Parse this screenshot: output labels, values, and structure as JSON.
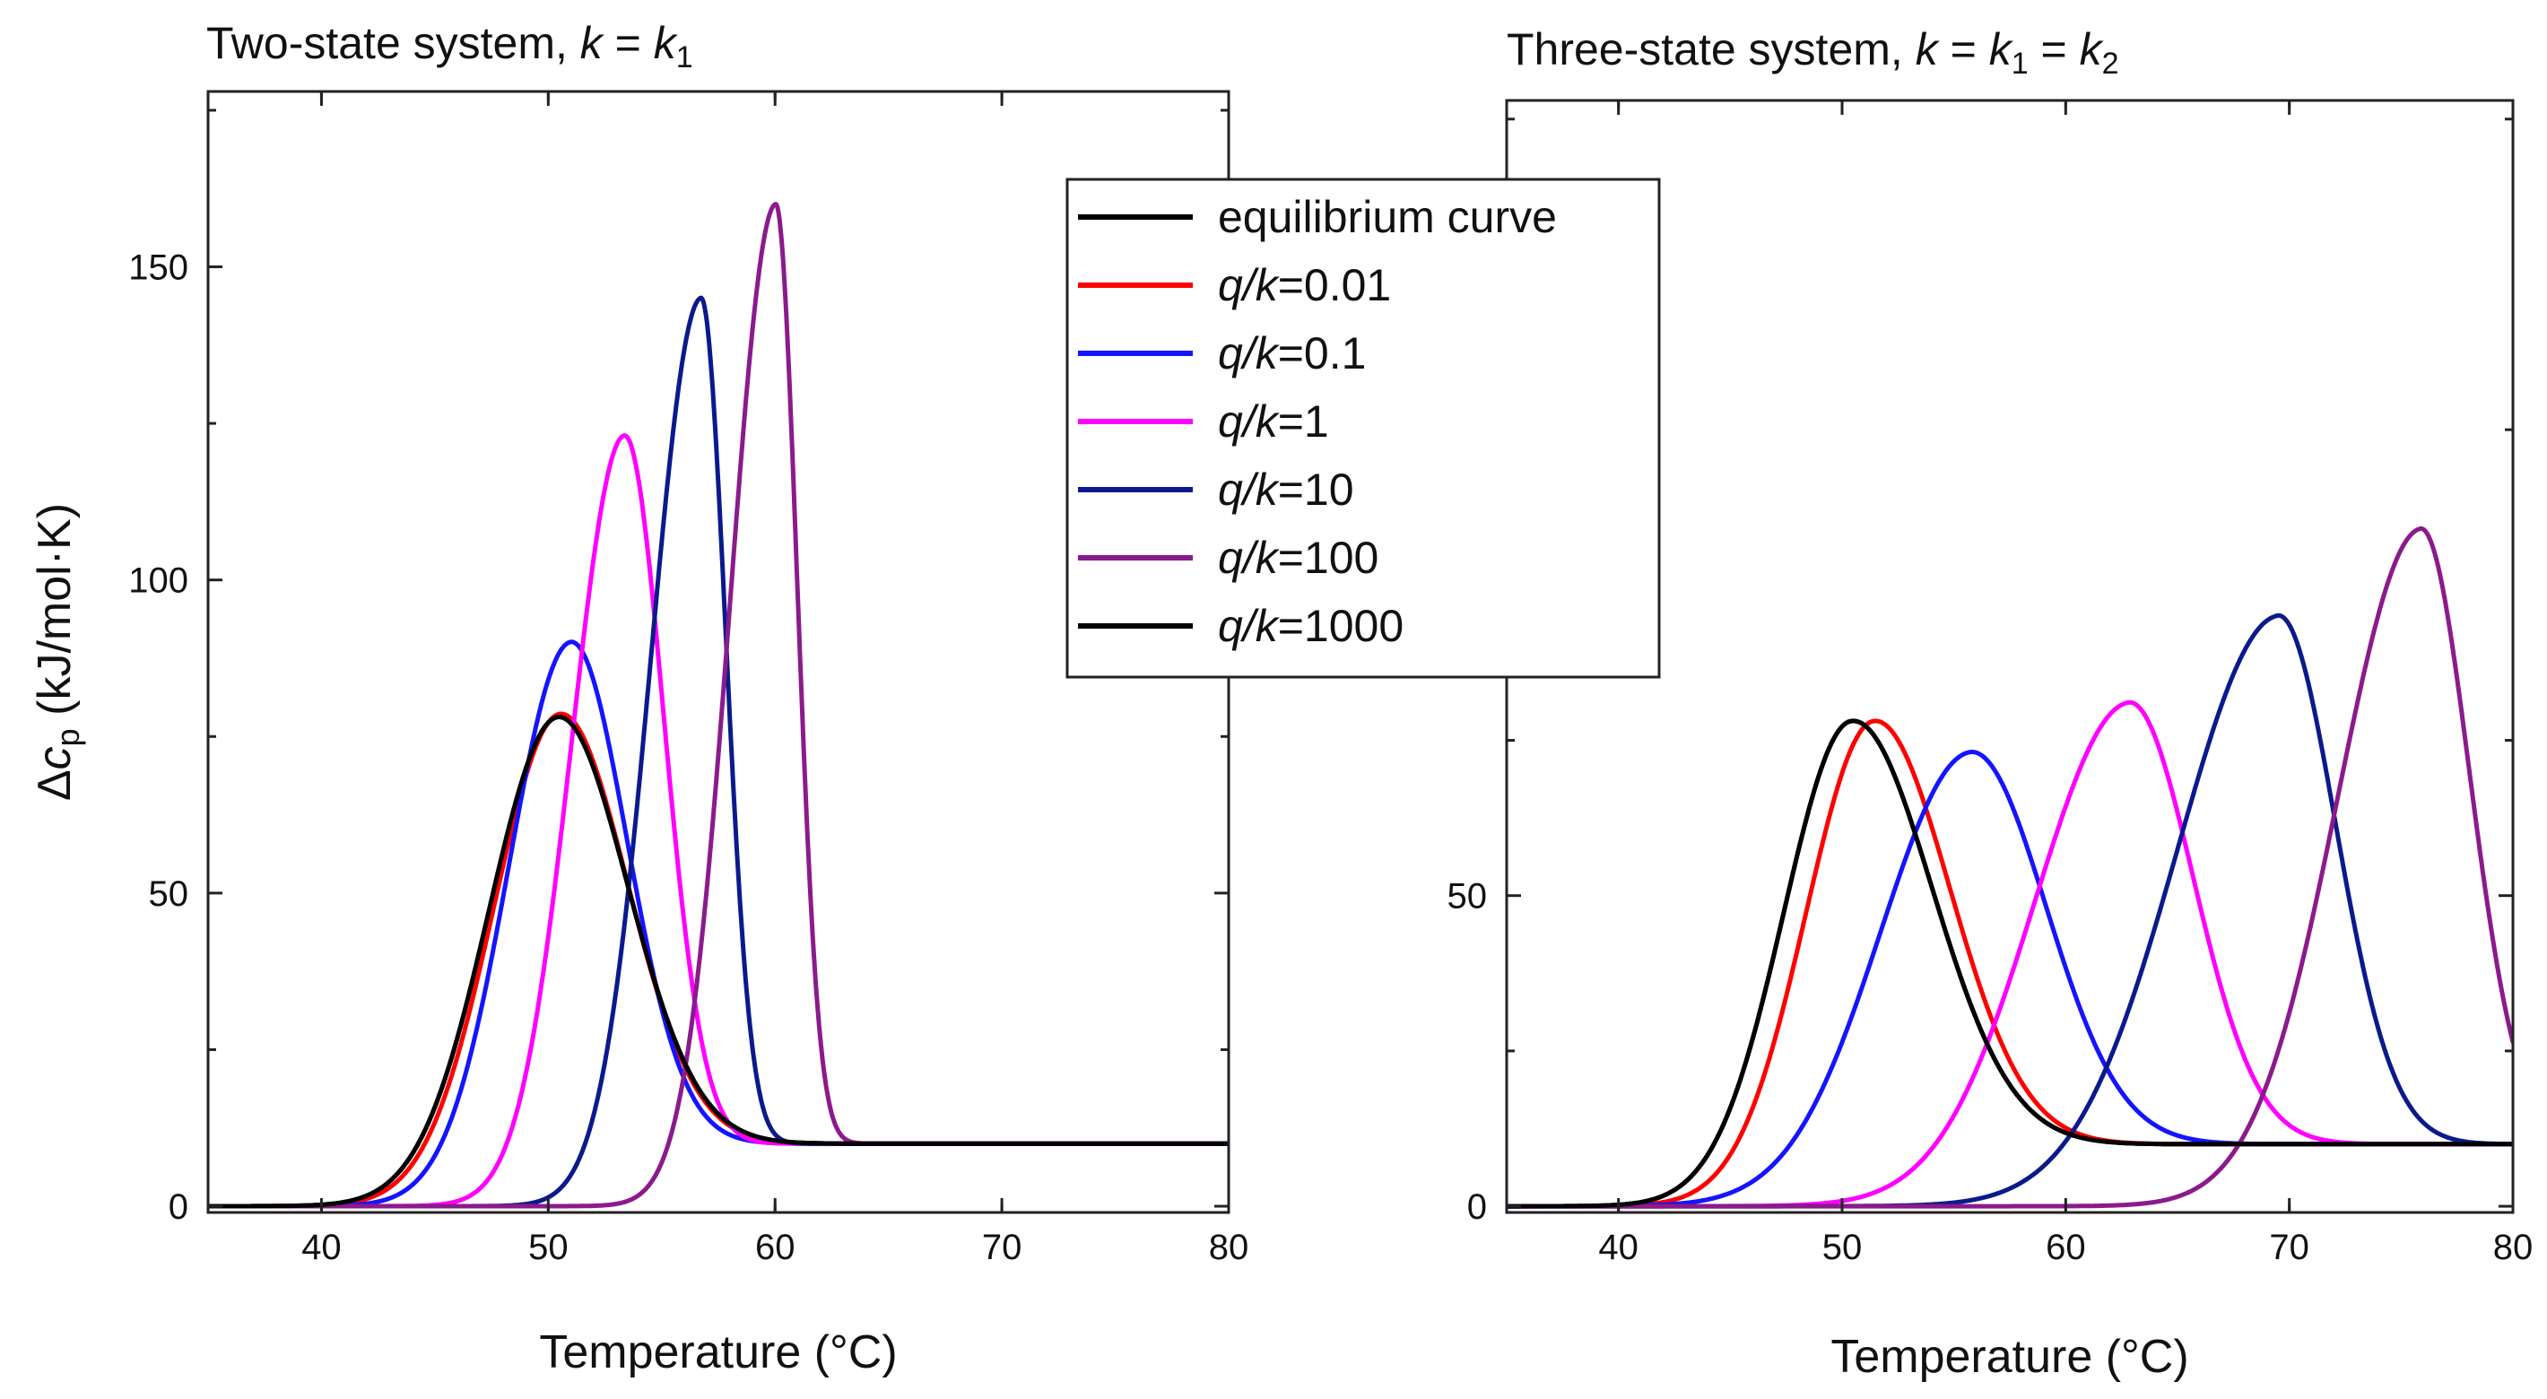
{
  "chart_data": [
    {
      "type": "line",
      "title": "Two-state system, k = k1",
      "title_parts": {
        "prefix": "Two-state system, ",
        "k": "k",
        "eq": " = ",
        "k1": "k",
        "sub1": "1"
      },
      "xlabel": "Temperature (°C)",
      "ylabel": "Δc_p (kJ/mol·K)",
      "ylabel_parts": {
        "delta": "Δ",
        "c": "c",
        "sub": "p",
        "unit": " (kJ/mol·K)"
      },
      "xlim": [
        35,
        80
      ],
      "ylim": [
        -1,
        178
      ],
      "xticks": [
        40,
        50,
        60,
        70,
        80
      ],
      "yticks": [
        0,
        50,
        100,
        150
      ],
      "baseline": 10,
      "series": [
        {
          "name": "equilibrium curve",
          "color": "#000000",
          "peak_x": 50.3,
          "peak_y": 78,
          "sigma_left": 3.0,
          "sigma_right": 3.1
        },
        {
          "name": "q/k=0.01",
          "color": "#ff0000",
          "peak_x": 50.4,
          "peak_y": 78.5,
          "sigma_left": 2.9,
          "sigma_right": 3.0
        },
        {
          "name": "q/k=0.1",
          "color": "#1414ff",
          "peak_x": 50.9,
          "peak_y": 90,
          "sigma_left": 2.7,
          "sigma_right": 2.5
        },
        {
          "name": "q/k=1",
          "color": "#ff00ff",
          "peak_x": 53.3,
          "peak_y": 123,
          "sigma_left": 2.3,
          "sigma_right": 1.75
        },
        {
          "name": "q/k=10",
          "color": "#0a1a8c",
          "peak_x": 56.7,
          "peak_y": 145,
          "sigma_left": 2.2,
          "sigma_right": 1.1
        },
        {
          "name": "q/k=100",
          "color": "#8b1a8c",
          "peak_x": 60.0,
          "peak_y": 160,
          "sigma_left": 2.0,
          "sigma_right": 0.95
        },
        {
          "name": "q/k=1000",
          "color": "#000000",
          "peak_x": 50.3,
          "peak_y": 78,
          "sigma_left": 3.0,
          "sigma_right": 3.1
        }
      ]
    },
    {
      "type": "line",
      "title": "Three-state system, k = k1 = k2",
      "title_parts": {
        "prefix": "Three-state system, ",
        "k": "k",
        "eq": " = ",
        "k1": "k",
        "sub1": "1",
        "eq2": " = ",
        "k2": "k",
        "sub2": "2"
      },
      "xlabel": "Temperature (°C)",
      "xlim": [
        35,
        80
      ],
      "ylim": [
        -1,
        178
      ],
      "xticks": [
        40,
        50,
        60,
        70,
        80
      ],
      "yticks": [
        0,
        50
      ],
      "baseline": 10,
      "series": [
        {
          "name": "equilibrium curve",
          "color": "#000000",
          "peak_x": 50.3,
          "peak_y": 78,
          "sigma_left": 3.0,
          "sigma_right": 3.6
        },
        {
          "name": "q/k=0.01",
          "color": "#ff0000",
          "peak_x": 51.3,
          "peak_y": 78,
          "sigma_left": 3.0,
          "sigma_right": 3.4
        },
        {
          "name": "q/k=0.1",
          "color": "#1414ff",
          "peak_x": 55.6,
          "peak_y": 73,
          "sigma_left": 4.0,
          "sigma_right": 3.4
        },
        {
          "name": "q/k=1",
          "color": "#ff00ff",
          "peak_x": 62.7,
          "peak_y": 81,
          "sigma_left": 4.2,
          "sigma_right": 2.9
        },
        {
          "name": "q/k=10",
          "color": "#0a1a8c",
          "peak_x": 69.4,
          "peak_y": 95,
          "sigma_left": 4.5,
          "sigma_right": 2.6
        },
        {
          "name": "q/k=100",
          "color": "#8b1a8c",
          "peak_x": 75.8,
          "peak_y": 109,
          "sigma_left": 3.7,
          "sigma_right": 2.2
        },
        {
          "name": "q/k=1000",
          "color": "#000000",
          "peak_x": 50.3,
          "peak_y": 78,
          "sigma_left": 3.0,
          "sigma_right": 3.6
        }
      ]
    }
  ],
  "legend": {
    "placement": "top-center",
    "entries": [
      {
        "label": "equilibrium curve",
        "color": "#000000"
      },
      {
        "label": "q/k=0.01",
        "italic": "q/k",
        "value": "=0.01",
        "color": "#ff0000"
      },
      {
        "label": "q/k=0.1",
        "italic": "q/k",
        "value": "=0.1",
        "color": "#1414ff"
      },
      {
        "label": "q/k=1",
        "italic": "q/k",
        "value": "=1",
        "color": "#ff00ff"
      },
      {
        "label": "q/k=10",
        "italic": "q/k",
        "value": "=10",
        "color": "#0a1a8c"
      },
      {
        "label": "q/k=100",
        "italic": "q/k",
        "value": "=100",
        "color": "#8b1a8c"
      },
      {
        "label": "q/k=1000",
        "italic": "q/k",
        "value": "=1000",
        "color": "#000000"
      }
    ]
  }
}
